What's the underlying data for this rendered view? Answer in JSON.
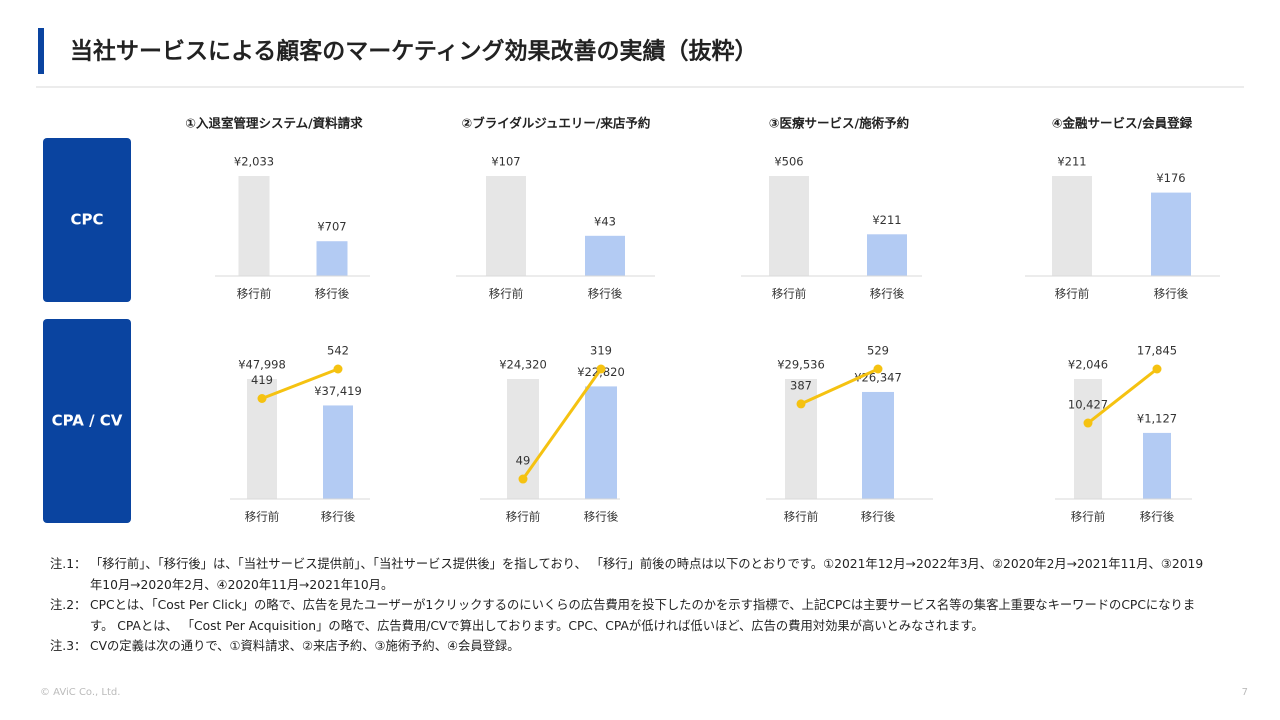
{
  "title": "当社サービスによる顧客のマーケティング効果改善の実績（抜粋）",
  "row_labels": [
    "CPC",
    "CPA / CV"
  ],
  "notes": [
    {
      "label": "注.1：",
      "text": "「移行前」、「移行後」は、「当社サービス提供前」、「当社サービス提供後」を指しており、 「移行」前後の時点は以下のとおりです。①2021年12月→2022年3月、②2020年2月→2021年11月、③2019年10月→2020年2月、④2020年11月→2021年10月。"
    },
    {
      "label": "注.2：",
      "text": "CPCとは、「Cost Per Click」の略で、広告を見たユーザーが1クリックするのにいくらの広告費用を投下したのかを示す指標で、上記CPCは主要サービス名等の集客上重要なキーワードのCPCになります。 CPAとは、 「Cost Per Acquisition」の略で、広告費用/CVで算出しております。CPC、CPAが低ければ低いほど、広告の費用対効果が高いとみなされます。"
    },
    {
      "label": "注.3：",
      "text": "CVの定義は次の通りで、①資料請求、②来店予約、③施術予約、④会員登録。"
    }
  ],
  "footer": "© AViC Co., Ltd.",
  "page_number": "7",
  "chart_data": [
    {
      "type": "bar",
      "title": "①入退室管理システム/資料請求",
      "categories": [
        "移行前",
        "移行後"
      ],
      "values": [
        2033,
        707
      ],
      "value_labels": [
        "¥2,033",
        "¥707"
      ],
      "colors": [
        "#e6e6e6",
        "#b3cbf3"
      ]
    },
    {
      "type": "bar",
      "title": "②ブライダルジュエリー/来店予約",
      "categories": [
        "移行前",
        "移行後"
      ],
      "values": [
        107,
        43
      ],
      "value_labels": [
        "¥107",
        "¥43"
      ],
      "colors": [
        "#e6e6e6",
        "#b3cbf3"
      ]
    },
    {
      "type": "bar",
      "title": "③医療サービス/施術予約",
      "categories": [
        "移行前",
        "移行後"
      ],
      "values": [
        506,
        211
      ],
      "value_labels": [
        "¥506",
        "¥211"
      ],
      "colors": [
        "#e6e6e6",
        "#b3cbf3"
      ]
    },
    {
      "type": "bar",
      "title": "④金融サービス/会員登録",
      "categories": [
        "移行前",
        "移行後"
      ],
      "values": [
        211,
        176
      ],
      "value_labels": [
        "¥211",
        "¥176"
      ],
      "colors": [
        "#e6e6e6",
        "#b3cbf3"
      ]
    },
    {
      "type": "bar_line",
      "categories": [
        "移行前",
        "移行後"
      ],
      "values": [
        47998,
        37419
      ],
      "value_labels": [
        "¥47,998",
        "¥37,419"
      ],
      "line_values": [
        419,
        542
      ],
      "colors": [
        "#e6e6e6",
        "#b3cbf3"
      ],
      "line_color": "#f5c211"
    },
    {
      "type": "bar_line",
      "categories": [
        "移行前",
        "移行後"
      ],
      "values": [
        24320,
        22820
      ],
      "value_labels": [
        "¥24,320",
        "¥22,820"
      ],
      "line_values": [
        49,
        319
      ],
      "colors": [
        "#e6e6e6",
        "#b3cbf3"
      ],
      "line_color": "#f5c211"
    },
    {
      "type": "bar_line",
      "categories": [
        "移行前",
        "移行後"
      ],
      "values": [
        29536,
        26347
      ],
      "value_labels": [
        "¥29,536",
        "¥26,347"
      ],
      "line_values": [
        387,
        529
      ],
      "colors": [
        "#e6e6e6",
        "#b3cbf3"
      ],
      "line_color": "#f5c211"
    },
    {
      "type": "bar_line",
      "categories": [
        "移行前",
        "移行後"
      ],
      "values": [
        2046,
        1127
      ],
      "value_labels": [
        "¥2,046",
        "¥1,127"
      ],
      "line_values": [
        10427,
        17845
      ],
      "line_value_labels": [
        "10,427",
        "17,845"
      ],
      "colors": [
        "#e6e6e6",
        "#b3cbf3"
      ],
      "line_color": "#f5c211"
    }
  ]
}
